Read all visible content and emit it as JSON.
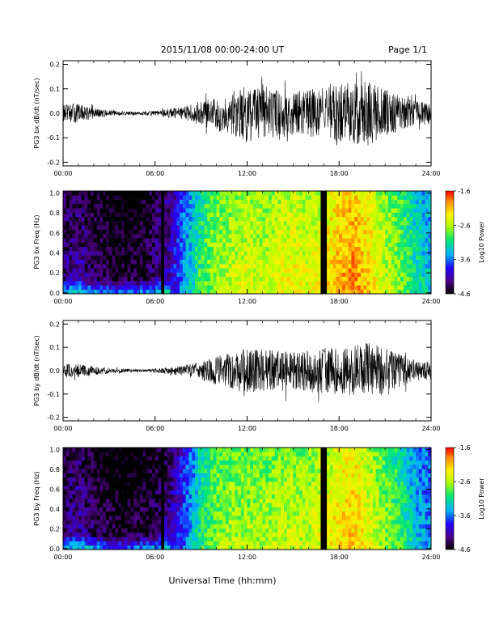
{
  "header": {
    "date_range": "2015/11/08  00:00-24:00 UT",
    "page": "Page 1/1"
  },
  "footer": {
    "xlabel": "Universal Time (hh:mm)"
  },
  "colors": {
    "trace": "#000000",
    "colormap": [
      "#000000",
      "#4b0082",
      "#2400ff",
      "#00b3ff",
      "#00e676",
      "#b7ff00",
      "#ffee00",
      "#ff8c00",
      "#ff0000"
    ]
  },
  "chart_data": [
    {
      "type": "line",
      "ylabel": "PG3 bx dB/dt (nT/sec)",
      "xlim": [
        0,
        24
      ],
      "ylim": [
        -0.2,
        0.2
      ],
      "yticks": [
        "0.2",
        "0.1",
        "0.0",
        "-0.1",
        "-0.2"
      ],
      "xticks": [
        "00:00",
        "06:00",
        "12:00",
        "18:00",
        "24:00"
      ],
      "envelope": [
        {
          "x": 0,
          "y": 0.035
        },
        {
          "x": 1,
          "y": 0.04
        },
        {
          "x": 2,
          "y": 0.022
        },
        {
          "x": 3,
          "y": 0.012
        },
        {
          "x": 4,
          "y": 0.008
        },
        {
          "x": 5,
          "y": 0.007
        },
        {
          "x": 6,
          "y": 0.01
        },
        {
          "x": 7,
          "y": 0.02
        },
        {
          "x": 8,
          "y": 0.03
        },
        {
          "x": 9,
          "y": 0.05
        },
        {
          "x": 10,
          "y": 0.07
        },
        {
          "x": 11,
          "y": 0.09
        },
        {
          "x": 12,
          "y": 0.12
        },
        {
          "x": 13,
          "y": 0.1
        },
        {
          "x": 14,
          "y": 0.1
        },
        {
          "x": 15,
          "y": 0.09
        },
        {
          "x": 16,
          "y": 0.1
        },
        {
          "x": 17,
          "y": 0.11
        },
        {
          "x": 18,
          "y": 0.12
        },
        {
          "x": 19,
          "y": 0.13
        },
        {
          "x": 20,
          "y": 0.13
        },
        {
          "x": 21,
          "y": 0.1
        },
        {
          "x": 22,
          "y": 0.07
        },
        {
          "x": 23,
          "y": 0.05
        },
        {
          "x": 24,
          "y": 0.045
        }
      ],
      "gap_at": 17.0
    },
    {
      "type": "heatmap",
      "ylabel": "PG3 bx Freq (Hz)",
      "colorbar_label": "Log10 Power",
      "colorbar_ticks": [
        "-1.6",
        "-2.6",
        "-3.6",
        "-4.6"
      ],
      "zlim": [
        -4.6,
        -1.6
      ],
      "xlim": [
        0,
        24
      ],
      "ylim": [
        0,
        1.0
      ],
      "yticks": [
        "1.0",
        "0.8",
        "0.6",
        "0.4",
        "0.2",
        "0.0"
      ],
      "xticks": [
        "00:00",
        "06:00",
        "12:00",
        "18:00",
        "24:00"
      ],
      "hourly_level": [
        -4.2,
        -4.1,
        -4.3,
        -4.4,
        -4.5,
        -4.4,
        -4.2,
        -4.0,
        -3.4,
        -2.9,
        -2.6,
        -2.5,
        -2.4,
        -2.5,
        -2.4,
        -2.3,
        -2.4,
        -2.3,
        -2.0,
        -1.9,
        -2.2,
        -2.5,
        -2.7,
        -3.1,
        -3.3
      ],
      "data_gaps": [
        6.5,
        17.0
      ]
    },
    {
      "type": "line",
      "ylabel": "PG3 by dB/dt (nT/sec)",
      "xlim": [
        0,
        24
      ],
      "ylim": [
        -0.2,
        0.2
      ],
      "yticks": [
        "0.2",
        "0.1",
        "0.0",
        "-0.1",
        "-0.2"
      ],
      "xticks": [
        "00:00",
        "06:00",
        "12:00",
        "18:00",
        "24:00"
      ],
      "envelope": [
        {
          "x": 0,
          "y": 0.03
        },
        {
          "x": 1,
          "y": 0.03
        },
        {
          "x": 2,
          "y": 0.02
        },
        {
          "x": 3,
          "y": 0.012
        },
        {
          "x": 4,
          "y": 0.008
        },
        {
          "x": 5,
          "y": 0.006
        },
        {
          "x": 6,
          "y": 0.008
        },
        {
          "x": 7,
          "y": 0.015
        },
        {
          "x": 8,
          "y": 0.025
        },
        {
          "x": 9,
          "y": 0.04
        },
        {
          "x": 10,
          "y": 0.06
        },
        {
          "x": 11,
          "y": 0.08
        },
        {
          "x": 12,
          "y": 0.1
        },
        {
          "x": 13,
          "y": 0.09
        },
        {
          "x": 14,
          "y": 0.09
        },
        {
          "x": 15,
          "y": 0.08
        },
        {
          "x": 16,
          "y": 0.09
        },
        {
          "x": 17,
          "y": 0.1
        },
        {
          "x": 18,
          "y": 0.1
        },
        {
          "x": 19,
          "y": 0.11
        },
        {
          "x": 20,
          "y": 0.12
        },
        {
          "x": 21,
          "y": 0.1
        },
        {
          "x": 22,
          "y": 0.07
        },
        {
          "x": 23,
          "y": 0.045
        },
        {
          "x": 24,
          "y": 0.04
        }
      ],
      "gap_at": 17.0
    },
    {
      "type": "heatmap",
      "ylabel": "PG3 by Freq (Hz)",
      "colorbar_label": "Log10 Power",
      "colorbar_ticks": [
        "-1.6",
        "-2.6",
        "-3.6",
        "-4.6"
      ],
      "zlim": [
        -4.6,
        -1.6
      ],
      "xlim": [
        0,
        24
      ],
      "ylim": [
        0,
        1.0
      ],
      "yticks": [
        "1.0",
        "0.8",
        "0.6",
        "0.4",
        "0.2",
        "0.0"
      ],
      "xticks": [
        "00:00",
        "06:00",
        "12:00",
        "18:00",
        "24:00"
      ],
      "hourly_level": [
        -4.2,
        -4.1,
        -4.3,
        -4.4,
        -4.5,
        -4.4,
        -4.3,
        -4.1,
        -3.6,
        -3.0,
        -2.7,
        -2.6,
        -2.6,
        -2.6,
        -2.5,
        -2.5,
        -2.5,
        -2.4,
        -2.2,
        -2.1,
        -2.4,
        -2.7,
        -2.9,
        -3.3,
        -3.5
      ],
      "data_gaps": [
        6.5,
        17.0
      ]
    }
  ]
}
